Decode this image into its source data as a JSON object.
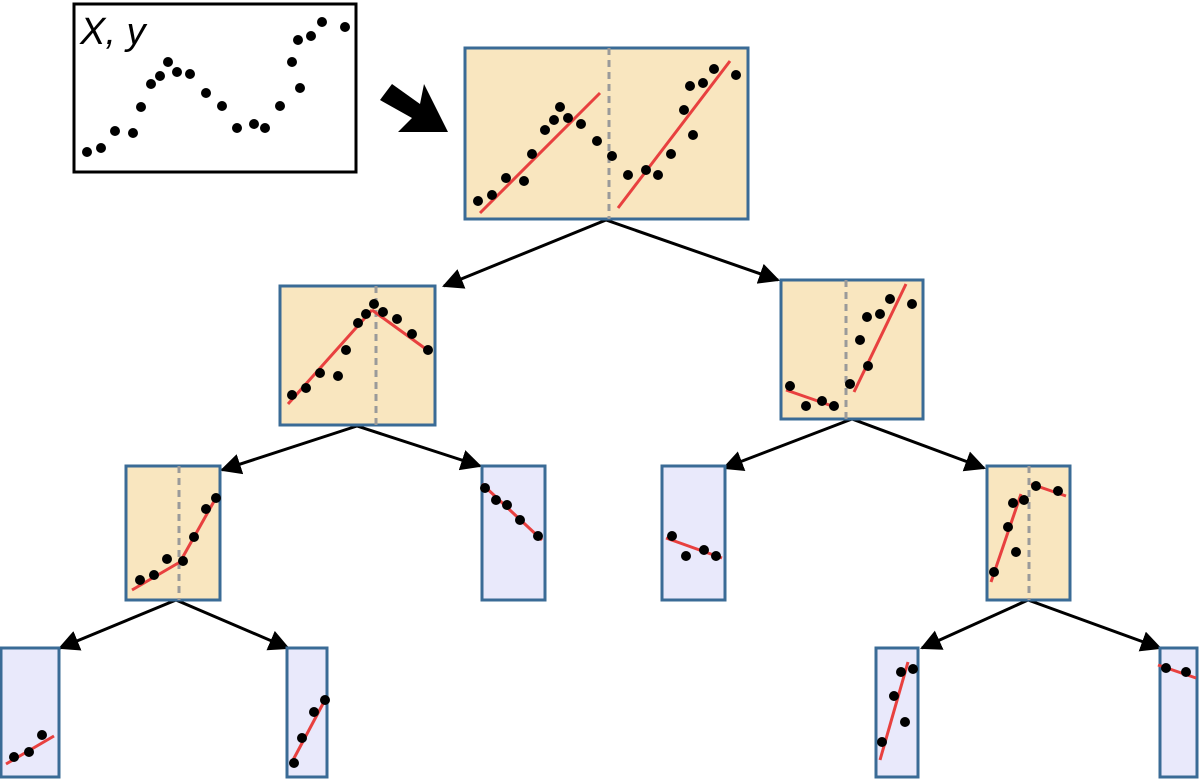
{
  "input_box": {
    "label": "X, y"
  },
  "colors": {
    "split_node_fill": "#f9e6bf",
    "leaf_node_fill": "#e9e9fb",
    "node_border": "#3a6b96",
    "fit_line": "#e8403f",
    "split_line": "#9a9a9a",
    "point": "#000000",
    "edge": "#000000"
  },
  "icons": {
    "transform_arrow": "big-arrow-icon"
  }
}
